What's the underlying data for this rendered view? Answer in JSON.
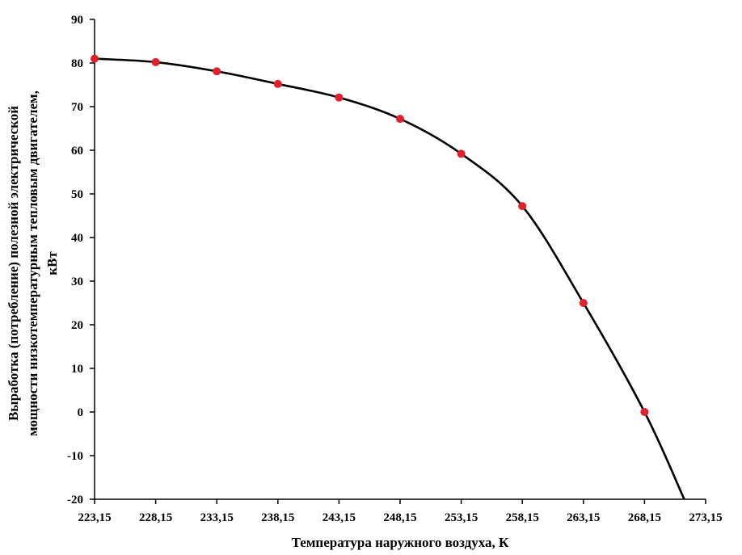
{
  "chart_data": {
    "type": "line",
    "title": "",
    "xlabel": "Температура наружного воздуха, К",
    "ylabel_lines": [
      "Выработка (потребление) полезной электрической",
      "мощности низкотемпературным тепловым двигателем,",
      "кВт"
    ],
    "x_tick_labels": [
      "223,15",
      "228,15",
      "233,15",
      "238,15",
      "243,15",
      "248,15",
      "253,15",
      "258,15",
      "263,15",
      "268,15",
      "273,15"
    ],
    "x_ticks": [
      223.15,
      228.15,
      233.15,
      238.15,
      243.15,
      248.15,
      253.15,
      258.15,
      263.15,
      268.15,
      273.15
    ],
    "y_ticks": [
      -20,
      -10,
      0,
      10,
      20,
      30,
      40,
      50,
      60,
      70,
      80,
      90
    ],
    "y_tick_labels": [
      "-20",
      "-10",
      "0",
      "10",
      "20",
      "30",
      "40",
      "50",
      "60",
      "70",
      "80",
      "90"
    ],
    "xlim": [
      223.15,
      273.15
    ],
    "ylim": [
      -20,
      90
    ],
    "grid": false,
    "series": [
      {
        "x": [
          223.15,
          228.15,
          233.15,
          238.15,
          243.15,
          248.15,
          253.15,
          258.15,
          263.15,
          268.15
        ],
        "values": [
          81,
          80.2,
          78.1,
          75.2,
          72.1,
          67.2,
          59.2,
          47.2,
          25,
          0
        ],
        "extension_to": {
          "x": 271.4,
          "y": -20
        },
        "line_color": "#000000",
        "marker_color": "#e0202a"
      }
    ]
  }
}
